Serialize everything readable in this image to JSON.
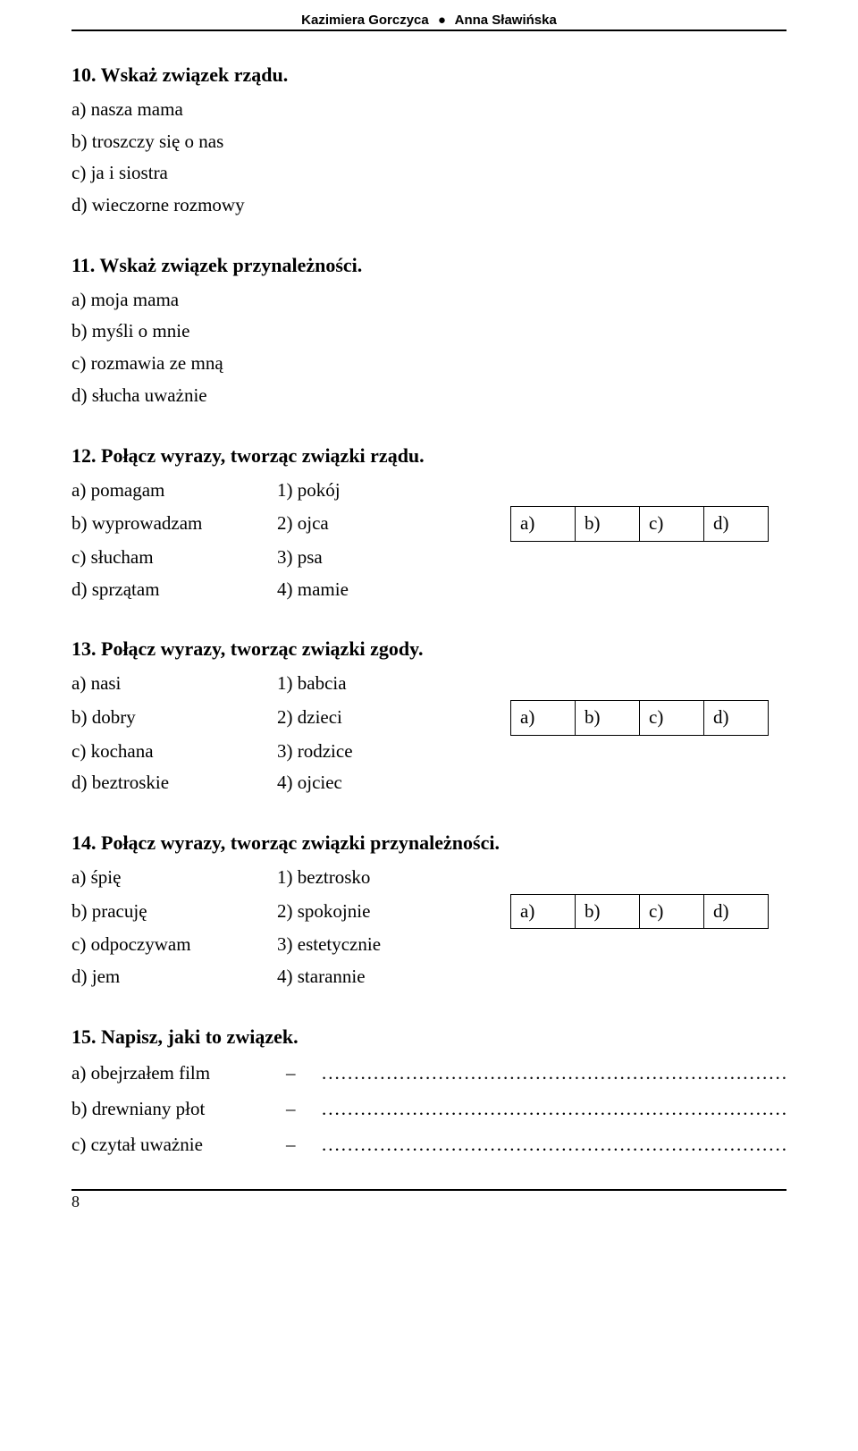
{
  "header": {
    "author1": "Kazimiera Gorczyca",
    "author2": "Anna Sławińska",
    "bullet": "●"
  },
  "questions": {
    "q10": {
      "title": "10. Wskaż związek rządu.",
      "options": [
        "a) nasza mama",
        "b) troszczy się o nas",
        "c) ja i siostra",
        "d) wieczorne rozmowy"
      ]
    },
    "q11": {
      "title": "11. Wskaż związek przynależności.",
      "options": [
        "a) moja mama",
        "b) myśli o mnie",
        "c) rozmawia ze mną",
        "d) słucha uważnie"
      ]
    },
    "q12": {
      "title": "12. Połącz wyrazy, tworząc związki rządu.",
      "pairs": [
        {
          "left": "a) pomagam",
          "right": "1) pokój"
        },
        {
          "left": "b) wyprowadzam",
          "right": "2) ojca"
        },
        {
          "left": "c) słucham",
          "right": "3) psa"
        },
        {
          "left": "d) sprzątam",
          "right": "4) mamie"
        }
      ],
      "answers": [
        "a)",
        "b)",
        "c)",
        "d)"
      ]
    },
    "q13": {
      "title": "13. Połącz wyrazy, tworząc związki zgody.",
      "pairs": [
        {
          "left": "a) nasi",
          "right": "1) babcia"
        },
        {
          "left": "b) dobry",
          "right": "2) dzieci"
        },
        {
          "left": "c) kochana",
          "right": "3) rodzice"
        },
        {
          "left": "d) beztroskie",
          "right": "4) ojciec"
        }
      ],
      "answers": [
        "a)",
        "b)",
        "c)",
        "d)"
      ]
    },
    "q14": {
      "title": "14. Połącz wyrazy, tworząc związki przynależności.",
      "pairs": [
        {
          "left": "a) śpię",
          "right": "1) beztrosko"
        },
        {
          "left": "b) pracuję",
          "right": "2) spokojnie"
        },
        {
          "left": "c) odpoczywam",
          "right": "3) estetycznie"
        },
        {
          "left": "d) jem",
          "right": "4) starannie"
        }
      ],
      "answers": [
        "a)",
        "b)",
        "c)",
        "d)"
      ]
    },
    "q15": {
      "title": "15. Napisz, jaki to związek.",
      "rows": [
        {
          "label": "a) obejrzałem film"
        },
        {
          "label": "b) drewniany płot"
        },
        {
          "label": "c) czytał uważnie"
        }
      ],
      "dash": "–"
    }
  },
  "page_number": "8"
}
